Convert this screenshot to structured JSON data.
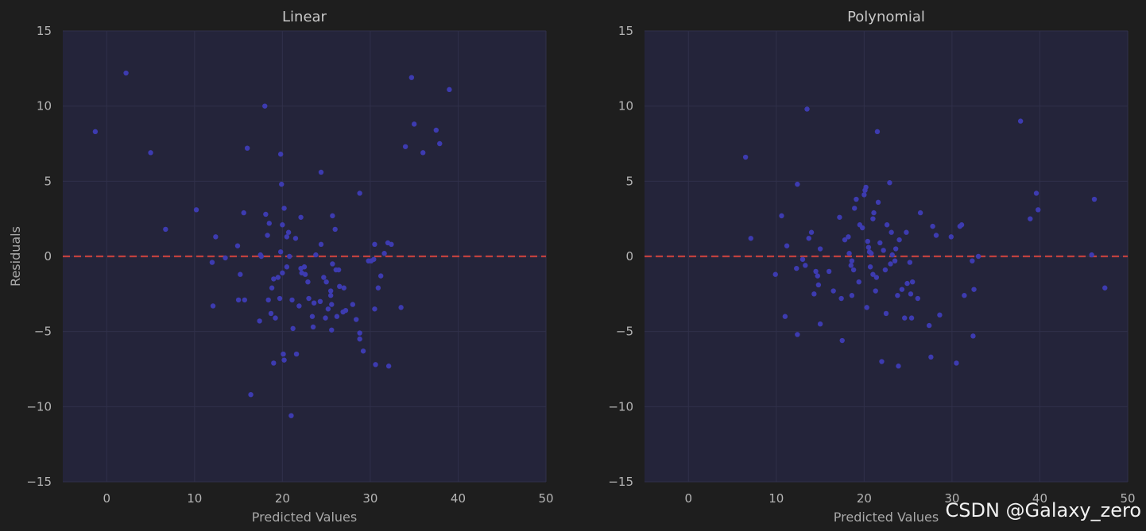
{
  "watermark": "CSDN @Galaxy_zero",
  "colors": {
    "background": "#1e1e1e",
    "plot_bg": "#24243a",
    "grid": "#30304a",
    "point": "#3d3bb0",
    "zero_line": "#c0403e"
  },
  "chart_data": [
    {
      "type": "scatter",
      "title": "Linear",
      "xlabel": "Predicted Values",
      "ylabel": "Residuals",
      "xlim": [
        -5,
        50
      ],
      "ylim": [
        -15,
        15
      ],
      "xticks": [
        "0",
        "10",
        "20",
        "30",
        "40",
        "50"
      ],
      "yticks": [
        "−15",
        "−10",
        "−5",
        "0",
        "5",
        "10",
        "15"
      ],
      "grid": true,
      "reference_line": {
        "y": 0,
        "style": "dashed"
      },
      "points": [
        [
          -1.3,
          8.3
        ],
        [
          2.2,
          12.2
        ],
        [
          5.0,
          6.9
        ],
        [
          6.7,
          1.8
        ],
        [
          10.2,
          3.1
        ],
        [
          12.0,
          -0.4
        ],
        [
          12.1,
          -3.3
        ],
        [
          12.4,
          1.3
        ],
        [
          13.5,
          -0.1
        ],
        [
          14.9,
          0.7
        ],
        [
          15.0,
          -2.9
        ],
        [
          15.2,
          -1.2
        ],
        [
          15.6,
          2.9
        ],
        [
          15.7,
          -2.9
        ],
        [
          16.0,
          7.2
        ],
        [
          16.4,
          -9.2
        ],
        [
          17.4,
          -4.3
        ],
        [
          17.5,
          0.1
        ],
        [
          17.6,
          0.0
        ],
        [
          18.0,
          10.0
        ],
        [
          18.1,
          2.8
        ],
        [
          18.3,
          1.4
        ],
        [
          18.4,
          -2.9
        ],
        [
          18.5,
          2.2
        ],
        [
          18.7,
          -3.8
        ],
        [
          18.8,
          -2.1
        ],
        [
          19.0,
          -1.5
        ],
        [
          19.0,
          -7.1
        ],
        [
          19.2,
          -4.1
        ],
        [
          19.5,
          -1.4
        ],
        [
          19.7,
          -2.8
        ],
        [
          19.8,
          0.3
        ],
        [
          19.8,
          6.8
        ],
        [
          19.9,
          4.8
        ],
        [
          20.0,
          2.1
        ],
        [
          20.0,
          -1.1
        ],
        [
          20.1,
          -6.5
        ],
        [
          20.2,
          3.2
        ],
        [
          20.2,
          -6.9
        ],
        [
          20.5,
          1.3
        ],
        [
          20.5,
          -0.7
        ],
        [
          20.7,
          1.6
        ],
        [
          20.8,
          0.0
        ],
        [
          21.1,
          -2.9
        ],
        [
          21.2,
          -4.8
        ],
        [
          21.0,
          -10.6
        ],
        [
          21.5,
          1.2
        ],
        [
          21.6,
          -6.5
        ],
        [
          21.9,
          -3.3
        ],
        [
          22.1,
          2.6
        ],
        [
          22.1,
          -0.8
        ],
        [
          22.2,
          -1.1
        ],
        [
          22.5,
          -0.7
        ],
        [
          22.6,
          -1.2
        ],
        [
          22.9,
          -1.7
        ],
        [
          23.0,
          -2.8
        ],
        [
          23.4,
          -4.0
        ],
        [
          23.5,
          -4.7
        ],
        [
          23.6,
          -3.1
        ],
        [
          23.8,
          0.1
        ],
        [
          24.3,
          -3.0
        ],
        [
          24.4,
          0.8
        ],
        [
          24.4,
          5.6
        ],
        [
          24.7,
          -1.4
        ],
        [
          24.9,
          -4.1
        ],
        [
          25.0,
          -1.7
        ],
        [
          25.2,
          -3.5
        ],
        [
          25.5,
          -2.6
        ],
        [
          25.5,
          -2.3
        ],
        [
          25.6,
          -3.2
        ],
        [
          25.6,
          -4.9
        ],
        [
          25.7,
          -0.5
        ],
        [
          25.7,
          2.7
        ],
        [
          26.0,
          1.8
        ],
        [
          26.1,
          -0.9
        ],
        [
          26.2,
          -4.0
        ],
        [
          26.4,
          -0.9
        ],
        [
          26.5,
          -2.0
        ],
        [
          26.9,
          -3.7
        ],
        [
          27.0,
          -2.1
        ],
        [
          27.2,
          -3.6
        ],
        [
          28.0,
          -3.2
        ],
        [
          28.4,
          -4.2
        ],
        [
          28.8,
          4.2
        ],
        [
          28.8,
          -5.1
        ],
        [
          28.8,
          -5.5
        ],
        [
          29.2,
          -6.3
        ],
        [
          29.8,
          -0.3
        ],
        [
          30.1,
          -0.3
        ],
        [
          30.4,
          -0.2
        ],
        [
          30.5,
          0.8
        ],
        [
          30.5,
          -3.5
        ],
        [
          30.6,
          -7.2
        ],
        [
          30.9,
          -2.1
        ],
        [
          31.2,
          -1.3
        ],
        [
          31.6,
          0.2
        ],
        [
          32.0,
          0.9
        ],
        [
          32.1,
          -7.3
        ],
        [
          32.4,
          0.8
        ],
        [
          33.5,
          -3.4
        ],
        [
          34.0,
          7.3
        ],
        [
          34.7,
          11.9
        ],
        [
          35.0,
          8.8
        ],
        [
          36.0,
          6.9
        ],
        [
          37.5,
          8.4
        ],
        [
          37.9,
          7.5
        ],
        [
          39.0,
          11.1
        ]
      ]
    },
    {
      "type": "scatter",
      "title": "Polynomial",
      "xlabel": "Predicted Values",
      "ylabel": "",
      "xlim": [
        -5,
        50
      ],
      "ylim": [
        -15,
        15
      ],
      "xticks": [
        "0",
        "10",
        "20",
        "30",
        "40",
        "50"
      ],
      "yticks": [
        "−15",
        "−10",
        "−5",
        "0",
        "5",
        "10",
        "15"
      ],
      "grid": true,
      "reference_line": {
        "y": 0,
        "style": "dashed"
      },
      "points": [
        [
          6.5,
          6.6
        ],
        [
          7.1,
          1.2
        ],
        [
          9.9,
          -1.2
        ],
        [
          10.6,
          2.7
        ],
        [
          11.0,
          -4.0
        ],
        [
          11.2,
          0.7
        ],
        [
          12.3,
          -0.8
        ],
        [
          12.4,
          4.8
        ],
        [
          12.4,
          -5.2
        ],
        [
          13.0,
          -0.2
        ],
        [
          13.3,
          -0.6
        ],
        [
          13.5,
          9.8
        ],
        [
          13.7,
          1.2
        ],
        [
          14.0,
          1.6
        ],
        [
          14.3,
          -2.5
        ],
        [
          14.5,
          -1.0
        ],
        [
          14.7,
          -1.3
        ],
        [
          14.8,
          -1.9
        ],
        [
          15.0,
          -4.5
        ],
        [
          15.0,
          0.5
        ],
        [
          16.0,
          -1.0
        ],
        [
          16.5,
          -2.3
        ],
        [
          17.2,
          2.6
        ],
        [
          17.4,
          -2.8
        ],
        [
          17.5,
          -5.6
        ],
        [
          17.8,
          1.1
        ],
        [
          18.2,
          1.3
        ],
        [
          18.3,
          0.2
        ],
        [
          18.5,
          -0.6
        ],
        [
          18.6,
          -0.3
        ],
        [
          18.6,
          -2.6
        ],
        [
          18.8,
          -0.9
        ],
        [
          18.9,
          3.2
        ],
        [
          19.1,
          3.8
        ],
        [
          19.4,
          -1.7
        ],
        [
          19.5,
          2.1
        ],
        [
          19.8,
          1.9
        ],
        [
          20.0,
          4.1
        ],
        [
          20.1,
          4.4
        ],
        [
          20.2,
          4.6
        ],
        [
          20.3,
          -3.4
        ],
        [
          20.4,
          1.0
        ],
        [
          20.5,
          0.6
        ],
        [
          20.6,
          0.3
        ],
        [
          20.7,
          -0.7
        ],
        [
          20.8,
          0.2
        ],
        [
          21.0,
          2.5
        ],
        [
          21.0,
          -1.2
        ],
        [
          21.1,
          2.9
        ],
        [
          21.3,
          -2.3
        ],
        [
          21.4,
          -1.4
        ],
        [
          21.5,
          8.3
        ],
        [
          21.6,
          3.6
        ],
        [
          21.8,
          0.9
        ],
        [
          22.0,
          -7.0
        ],
        [
          22.2,
          0.4
        ],
        [
          22.4,
          -0.9
        ],
        [
          22.5,
          -3.8
        ],
        [
          22.6,
          2.1
        ],
        [
          22.9,
          4.9
        ],
        [
          23.0,
          -0.5
        ],
        [
          23.1,
          1.6
        ],
        [
          23.2,
          0.1
        ],
        [
          23.5,
          -0.3
        ],
        [
          23.6,
          0.5
        ],
        [
          23.8,
          -2.6
        ],
        [
          23.9,
          -7.3
        ],
        [
          24.0,
          1.1
        ],
        [
          24.3,
          -2.2
        ],
        [
          24.6,
          -4.1
        ],
        [
          24.8,
          1.6
        ],
        [
          24.9,
          -1.8
        ],
        [
          25.2,
          -0.4
        ],
        [
          25.3,
          -2.5
        ],
        [
          25.4,
          -4.1
        ],
        [
          25.5,
          -1.7
        ],
        [
          26.1,
          -2.8
        ],
        [
          26.4,
          2.9
        ],
        [
          27.4,
          -4.6
        ],
        [
          27.6,
          -6.7
        ],
        [
          27.8,
          2.0
        ],
        [
          28.2,
          1.4
        ],
        [
          28.6,
          -3.9
        ],
        [
          29.9,
          1.3
        ],
        [
          30.5,
          -7.1
        ],
        [
          30.9,
          2.0
        ],
        [
          31.1,
          2.1
        ],
        [
          31.4,
          -2.6
        ],
        [
          32.3,
          -0.3
        ],
        [
          32.4,
          -5.3
        ],
        [
          32.5,
          -2.2
        ],
        [
          33.0,
          0.0
        ],
        [
          37.8,
          9.0
        ],
        [
          38.9,
          2.5
        ],
        [
          39.6,
          4.2
        ],
        [
          39.8,
          3.1
        ],
        [
          45.9,
          0.1
        ],
        [
          46.2,
          3.8
        ],
        [
          47.4,
          -2.1
        ]
      ]
    }
  ]
}
